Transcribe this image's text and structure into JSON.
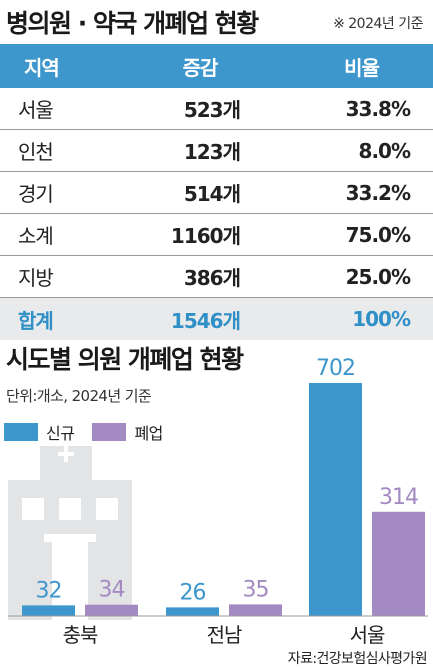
{
  "header": {
    "title": "병의원 · 약국 개폐업 현황",
    "note": "※ 2024년 기준"
  },
  "table": {
    "columns": [
      "지역",
      "증감",
      "비율"
    ],
    "rows": [
      {
        "region": "서울",
        "change": "523개",
        "ratio": "33.8%"
      },
      {
        "region": "인천",
        "change": "123개",
        "ratio": "8.0%"
      },
      {
        "region": "경기",
        "change": "514개",
        "ratio": "33.2%"
      },
      {
        "region": "소계",
        "change": "1160개",
        "ratio": "75.0%"
      },
      {
        "region": "지방",
        "change": "386개",
        "ratio": "25.0%"
      }
    ],
    "total": {
      "region": "합계",
      "change": "1546개",
      "ratio": "100%"
    }
  },
  "chart_data": {
    "type": "bar",
    "title": "시도별 의원 개폐업 현황",
    "subtitle": "단위:개소, 2024년 기준",
    "categories": [
      "충북",
      "전남",
      "서울"
    ],
    "series": [
      {
        "name": "신규",
        "values": [
          32,
          26,
          702
        ],
        "color": "#3d97cc"
      },
      {
        "name": "폐업",
        "values": [
          34,
          35,
          314
        ],
        "color": "#a48ac2"
      }
    ],
    "legend_position": "top-left",
    "ylim": [
      0,
      702
    ],
    "grid": false
  },
  "decoration": {
    "illustration": "hospital-icon"
  },
  "source": "자료:건강보험심사평가원"
}
